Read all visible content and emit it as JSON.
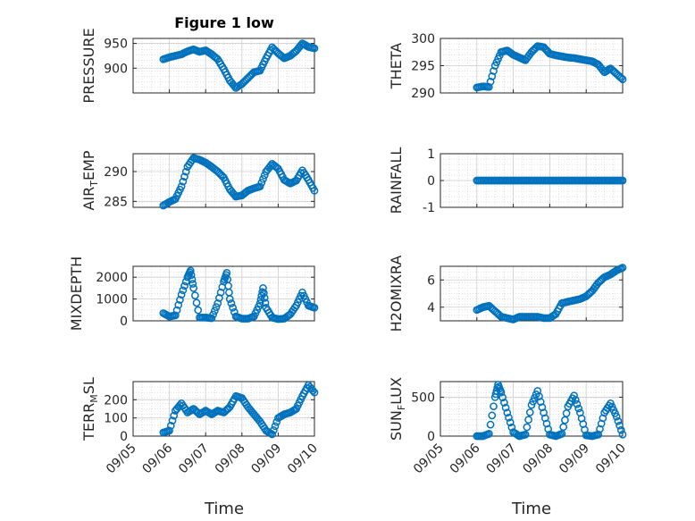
{
  "figure_title": "Figure 1 low",
  "colors": {
    "marker": "#0072BD",
    "axis": "#262626",
    "grid": "#d9d9d9"
  },
  "chart_data": [
    {
      "type": "scatter",
      "ylabel": "PRESSURE",
      "ylim": [
        850,
        960
      ],
      "yticks": [
        900,
        950
      ],
      "ytick_labels": [
        "900",
        "950"
      ],
      "xticks": [],
      "x": [
        "09/05 20:00",
        "09/06 00:00",
        "09/06 04:00",
        "09/06 08:00",
        "09/06 12:00",
        "09/06 16:00",
        "09/06 20:00",
        "09/07 00:00",
        "09/07 04:00",
        "09/07 08:00",
        "09/07 12:00",
        "09/07 16:00",
        "09/07 20:00",
        "09/08 00:00",
        "09/08 04:00",
        "09/08 08:00",
        "09/08 12:00",
        "09/08 16:00",
        "09/08 20:00",
        "09/09 00:00",
        "09/09 04:00",
        "09/09 08:00",
        "09/09 12:00",
        "09/09 16:00",
        "09/09 20:00",
        "09/10 00:00"
      ],
      "y": [
        918,
        922,
        925,
        928,
        934,
        938,
        933,
        936,
        928,
        918,
        898,
        875,
        860,
        868,
        880,
        892,
        895,
        920,
        942,
        930,
        920,
        925,
        935,
        950,
        943,
        940
      ]
    },
    {
      "type": "scatter",
      "ylabel": "THETA",
      "ylim": [
        290,
        300
      ],
      "yticks": [
        290,
        295,
        300
      ],
      "ytick_labels": [
        "290",
        "295",
        "300"
      ],
      "xticks": [],
      "x": [
        "09/06 00:00",
        "09/06 04:00",
        "09/06 08:00",
        "09/06 12:00",
        "09/06 16:00",
        "09/06 20:00",
        "09/07 00:00",
        "09/07 04:00",
        "09/07 08:00",
        "09/07 12:00",
        "09/07 16:00",
        "09/07 20:00",
        "09/08 00:00",
        "09/08 04:00",
        "09/08 08:00",
        "09/08 12:00",
        "09/08 16:00",
        "09/08 20:00",
        "09/09 00:00",
        "09/09 04:00",
        "09/09 08:00",
        "09/09 12:00",
        "09/09 16:00",
        "09/09 20:00",
        "09/10 00:00"
      ],
      "y": [
        291,
        291.2,
        291.1,
        295,
        297.5,
        297.8,
        297,
        296.5,
        296,
        297.5,
        298.6,
        298.4,
        297.2,
        296.9,
        296.7,
        296.5,
        296.4,
        296.2,
        296,
        295.8,
        295.2,
        293.8,
        294.5,
        293.5,
        292.5
      ]
    },
    {
      "type": "scatter",
      "ylabel": "AIR_TEMP",
      "ylim": [
        284,
        293
      ],
      "yticks": [
        285,
        290
      ],
      "ytick_labels": [
        "285",
        "290"
      ],
      "xticks": [],
      "x": [
        "09/05 20:00",
        "09/06 00:00",
        "09/06 04:00",
        "09/06 08:00",
        "09/06 12:00",
        "09/06 16:00",
        "09/06 20:00",
        "09/07 00:00",
        "09/07 04:00",
        "09/07 08:00",
        "09/07 12:00",
        "09/07 16:00",
        "09/07 20:00",
        "09/08 00:00",
        "09/08 04:00",
        "09/08 08:00",
        "09/08 12:00",
        "09/08 16:00",
        "09/08 20:00",
        "09/09 00:00",
        "09/09 04:00",
        "09/09 08:00",
        "09/09 12:00",
        "09/09 16:00",
        "09/09 20:00",
        "09/10 00:00"
      ],
      "y": [
        284.3,
        284.9,
        285.4,
        287.5,
        290.8,
        292.3,
        292,
        291.5,
        290.8,
        290,
        289,
        287,
        285.8,
        286,
        286.8,
        287.2,
        287.5,
        290,
        291.3,
        290.5,
        288.6,
        288,
        288.5,
        290.2,
        288.6,
        286.8
      ]
    },
    {
      "type": "scatter",
      "ylabel": "RAINFALL",
      "ylim": [
        -1,
        1
      ],
      "yticks": [
        -1,
        0,
        1
      ],
      "ytick_labels": [
        "-1",
        "0",
        "1"
      ],
      "xticks": [],
      "x": [
        "09/06 00:00",
        "09/06 04:00",
        "09/06 08:00",
        "09/06 12:00",
        "09/06 16:00",
        "09/06 20:00",
        "09/07 00:00",
        "09/07 04:00",
        "09/07 08:00",
        "09/07 12:00",
        "09/07 16:00",
        "09/07 20:00",
        "09/08 00:00",
        "09/08 04:00",
        "09/08 08:00",
        "09/08 12:00",
        "09/08 16:00",
        "09/08 20:00",
        "09/09 00:00",
        "09/09 04:00",
        "09/09 08:00",
        "09/09 12:00",
        "09/09 16:00",
        "09/09 20:00",
        "09/10 00:00"
      ],
      "y": [
        0,
        0,
        0,
        0,
        0,
        0,
        0,
        0,
        0,
        0,
        0,
        0,
        0,
        0,
        0,
        0,
        0,
        0,
        0,
        0,
        0,
        0,
        0,
        0,
        0
      ]
    },
    {
      "type": "scatter",
      "ylabel": "MIXDEPTH",
      "ylim": [
        0,
        2500
      ],
      "yticks": [
        0,
        1000,
        2000
      ],
      "ytick_labels": [
        "0",
        "1000",
        "2000"
      ],
      "xticks": [],
      "x": [
        "09/05 20:00",
        "09/06 00:00",
        "09/06 04:00",
        "09/06 08:00",
        "09/06 12:00",
        "09/06 14:00",
        "09/06 16:00",
        "09/06 20:00",
        "09/07 00:00",
        "09/07 04:00",
        "09/07 08:00",
        "09/07 12:00",
        "09/07 14:00",
        "09/07 16:00",
        "09/07 20:00",
        "09/08 00:00",
        "09/08 04:00",
        "09/08 08:00",
        "09/08 12:00",
        "09/08 14:00",
        "09/08 16:00",
        "09/08 20:00",
        "09/09 00:00",
        "09/09 04:00",
        "09/09 08:00",
        "09/09 12:00",
        "09/09 16:00",
        "09/09 20:00",
        "09/10 00:00"
      ],
      "y": [
        350,
        200,
        250,
        1200,
        2000,
        2300,
        1500,
        150,
        150,
        120,
        800,
        1800,
        2200,
        1000,
        200,
        100,
        100,
        200,
        800,
        1500,
        600,
        150,
        80,
        100,
        300,
        700,
        1300,
        700,
        600
      ]
    },
    {
      "type": "scatter",
      "ylabel": "H2OMIXRA",
      "ylim": [
        3,
        7
      ],
      "yticks": [
        4,
        6
      ],
      "ytick_labels": [
        "4",
        "6"
      ],
      "xticks": [],
      "x": [
        "09/06 00:00",
        "09/06 04:00",
        "09/06 08:00",
        "09/06 12:00",
        "09/06 16:00",
        "09/06 20:00",
        "09/07 00:00",
        "09/07 04:00",
        "09/07 08:00",
        "09/07 12:00",
        "09/07 16:00",
        "09/07 20:00",
        "09/08 00:00",
        "09/08 04:00",
        "09/08 08:00",
        "09/08 12:00",
        "09/08 16:00",
        "09/08 20:00",
        "09/09 00:00",
        "09/09 04:00",
        "09/09 08:00",
        "09/09 12:00",
        "09/09 16:00",
        "09/09 20:00",
        "09/10 00:00"
      ],
      "y": [
        3.8,
        4.0,
        4.1,
        3.7,
        3.3,
        3.2,
        3.1,
        3.3,
        3.3,
        3.3,
        3.3,
        3.2,
        3.2,
        3.5,
        4.3,
        4.4,
        4.5,
        4.6,
        4.8,
        5.2,
        5.8,
        6.2,
        6.4,
        6.7,
        6.9
      ]
    },
    {
      "type": "scatter",
      "ylabel": "TERR_MSL",
      "ylim": [
        0,
        300
      ],
      "yticks": [
        0,
        100,
        200
      ],
      "ytick_labels": [
        "0",
        "100",
        "200"
      ],
      "xticks": [
        "09/05",
        "09/06",
        "09/07",
        "09/08",
        "09/09",
        "09/10"
      ],
      "xtick_labels": [
        "09/05",
        "09/06",
        "09/07",
        "09/08",
        "09/09",
        "09/10"
      ],
      "x": [
        "09/05 20:00",
        "09/06 00:00",
        "09/06 04:00",
        "09/06 08:00",
        "09/06 12:00",
        "09/06 16:00",
        "09/06 20:00",
        "09/07 00:00",
        "09/07 04:00",
        "09/07 08:00",
        "09/07 12:00",
        "09/07 16:00",
        "09/07 20:00",
        "09/08 00:00",
        "09/08 04:00",
        "09/08 08:00",
        "09/08 12:00",
        "09/08 16:00",
        "09/08 20:00",
        "09/09 00:00",
        "09/09 04:00",
        "09/09 08:00",
        "09/09 12:00",
        "09/09 16:00",
        "09/09 20:00",
        "09/10 00:00"
      ],
      "y": [
        20,
        30,
        140,
        180,
        130,
        150,
        120,
        140,
        120,
        140,
        130,
        160,
        220,
        210,
        160,
        120,
        80,
        30,
        10,
        100,
        120,
        130,
        150,
        220,
        280,
        240
      ]
    },
    {
      "type": "scatter",
      "ylabel": "SUN_FLUX",
      "ylim": [
        0,
        700
      ],
      "yticks": [
        0,
        500
      ],
      "ytick_labels": [
        "0",
        "500"
      ],
      "xticks": [
        "09/05",
        "09/06",
        "09/07",
        "09/08",
        "09/09",
        "09/10"
      ],
      "xtick_labels": [
        "09/05",
        "09/06",
        "09/07",
        "09/08",
        "09/09",
        "09/10"
      ],
      "x": [
        "09/06 00:00",
        "09/06 04:00",
        "09/06 08:00",
        "09/06 12:00",
        "09/06 14:00",
        "09/06 16:00",
        "09/06 20:00",
        "09/07 00:00",
        "09/07 04:00",
        "09/07 08:00",
        "09/07 12:00",
        "09/07 16:00",
        "09/07 20:00",
        "09/08 00:00",
        "09/08 04:00",
        "09/08 08:00",
        "09/08 12:00",
        "09/08 16:00",
        "09/08 20:00",
        "09/09 00:00",
        "09/09 04:00",
        "09/09 08:00",
        "09/09 12:00",
        "09/09 16:00",
        "09/09 20:00",
        "09/10 00:00"
      ],
      "y": [
        0,
        0,
        30,
        500,
        660,
        560,
        300,
        50,
        0,
        20,
        400,
        580,
        300,
        20,
        0,
        30,
        380,
        520,
        300,
        10,
        0,
        20,
        300,
        420,
        250,
        20
      ]
    }
  ],
  "xlabels": [
    "Time",
    "Time"
  ]
}
